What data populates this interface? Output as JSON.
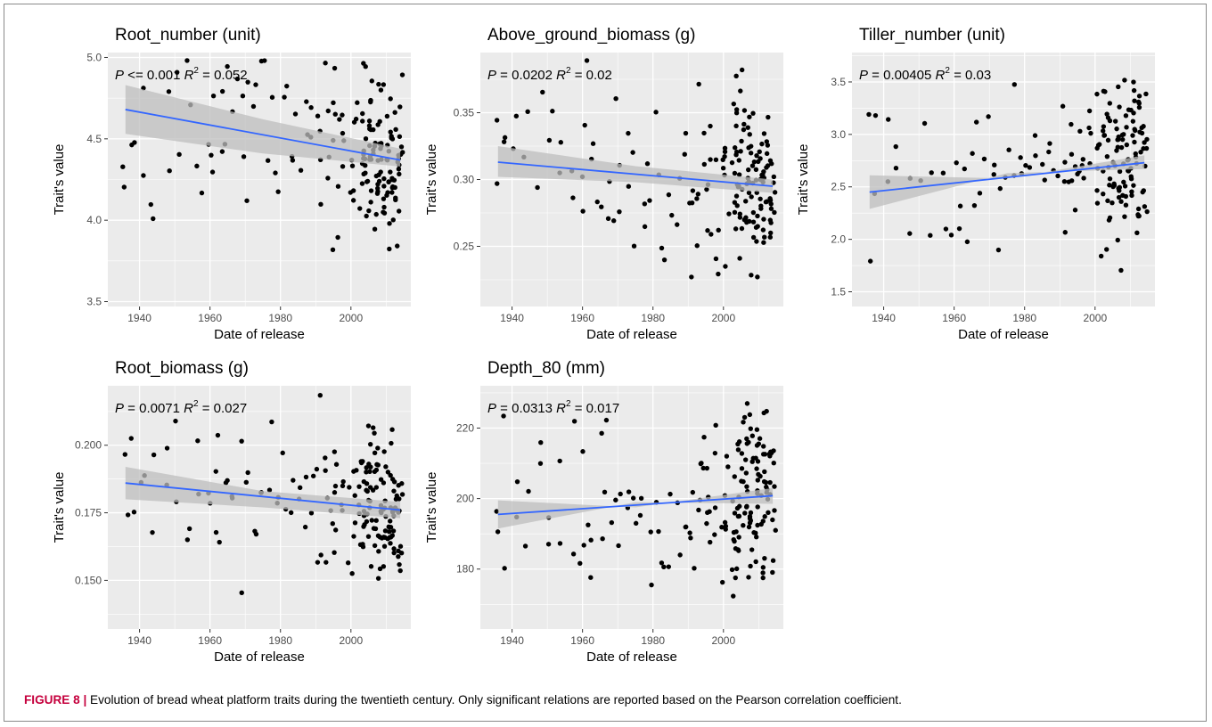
{
  "figure": {
    "caption_label": "FIGURE 8 |",
    "caption_text": " Evolution of bread wheat platform traits during the twentieth century. Only significant relations are reported based on the Pearson correlation coefficient."
  },
  "colors": {
    "panel_bg": "#ebebeb",
    "grid": "#ffffff",
    "point": "#000000",
    "fit_line": "#3366ff",
    "ci_band": "#bdbdbd",
    "caption_label": "#c5003d"
  },
  "chart_data": [
    {
      "type": "scatter",
      "title": "Root_number (unit)",
      "xlabel": "Date of release",
      "ylabel": "Trait's value",
      "xlim": [
        1931,
        2017
      ],
      "ylim": [
        3.47,
        5.03
      ],
      "xticks": [
        1940,
        1960,
        1980,
        2000
      ],
      "yticks": [
        3.5,
        4.0,
        4.5,
        5.0
      ],
      "yticklabels": [
        "3.5",
        "4.0",
        "4.5",
        "5.0"
      ],
      "grid": true,
      "annotation": {
        "p": "P <= 0.001",
        "r2": "0.052"
      },
      "fit": {
        "x": [
          1936,
          2014
        ],
        "y": [
          4.68,
          4.37
        ]
      },
      "ci": {
        "lower": [
          4.53,
          4.33
        ],
        "mid": [
          4.62,
          4.41
        ],
        "upper": [
          4.83,
          4.44
        ]
      }
    },
    {
      "type": "scatter",
      "title": "Above_ground_biomass (g)",
      "xlabel": "Date of release",
      "ylabel": "Trait's value",
      "xlim": [
        1931,
        2017
      ],
      "ylim": [
        0.205,
        0.395
      ],
      "xticks": [
        1940,
        1960,
        1980,
        2000
      ],
      "yticks": [
        0.25,
        0.3,
        0.35
      ],
      "yticklabels": [
        "0.25",
        "0.30",
        "0.35"
      ],
      "grid": true,
      "annotation": {
        "p": "P = 0.0202",
        "r2": "0.02"
      },
      "fit": {
        "x": [
          1936,
          2014
        ],
        "y": [
          0.313,
          0.295
        ]
      },
      "ci": {
        "lower": [
          0.302,
          0.29
        ],
        "mid": [
          0.31,
          0.298
        ],
        "upper": [
          0.325,
          0.3
        ]
      }
    },
    {
      "type": "scatter",
      "title": "Tiller_number (unit)",
      "xlabel": "Date of release",
      "ylabel": "Trait's value",
      "xlim": [
        1931,
        2017
      ],
      "ylim": [
        1.36,
        3.78
      ],
      "xticks": [
        1940,
        1960,
        1980,
        2000
      ],
      "yticks": [
        1.5,
        2.0,
        2.5,
        3.0,
        3.5
      ],
      "yticklabels": [
        "1.5",
        "2.0",
        "2.5",
        "3.0",
        "3.5"
      ],
      "grid": true,
      "annotation": {
        "p": "P = 0.00405",
        "r2": "0.03"
      },
      "fit": {
        "x": [
          1936,
          2014
        ],
        "y": [
          2.45,
          2.73
        ]
      },
      "ci": {
        "lower": [
          2.29,
          2.67
        ],
        "mid": [
          2.58,
          2.63
        ],
        "upper": [
          2.61,
          2.8
        ]
      }
    },
    {
      "type": "scatter",
      "title": "Root_biomass (g)",
      "xlabel": "Date of release",
      "ylabel": "Trait's value",
      "xlim": [
        1931,
        2017
      ],
      "ylim": [
        0.132,
        0.222
      ],
      "xticks": [
        1940,
        1960,
        1980,
        2000
      ],
      "yticks": [
        0.15,
        0.175,
        0.2
      ],
      "yticklabels": [
        "0.150",
        "0.175",
        "0.200"
      ],
      "grid": true,
      "annotation": {
        "p": "P = 0.0071",
        "r2": "0.027"
      },
      "fit": {
        "x": [
          1936,
          2014
        ],
        "y": [
          0.186,
          0.176
        ]
      },
      "ci": {
        "lower": [
          0.18,
          0.173
        ],
        "mid": [
          0.183,
          0.177
        ],
        "upper": [
          0.192,
          0.179
        ]
      }
    },
    {
      "type": "scatter",
      "title": "Depth_80 (mm)",
      "xlabel": "Date of release",
      "ylabel": "Trait's value",
      "xlim": [
        1931,
        2017
      ],
      "ylim": [
        163,
        232
      ],
      "xticks": [
        1940,
        1960,
        1980,
        2000
      ],
      "yticks": [
        180,
        200,
        220
      ],
      "yticklabels": [
        "180",
        "200",
        "220"
      ],
      "grid": true,
      "annotation": {
        "p": "P = 0.0313",
        "r2": "0.017"
      },
      "fit": {
        "x": [
          1936,
          2014
        ],
        "y": [
          195.5,
          200.8
        ]
      },
      "ci": {
        "lower": [
          191.5,
          198.5
        ],
        "mid": [
          197.5,
          199.0
        ],
        "upper": [
          199.5,
          203.0
        ]
      }
    }
  ]
}
